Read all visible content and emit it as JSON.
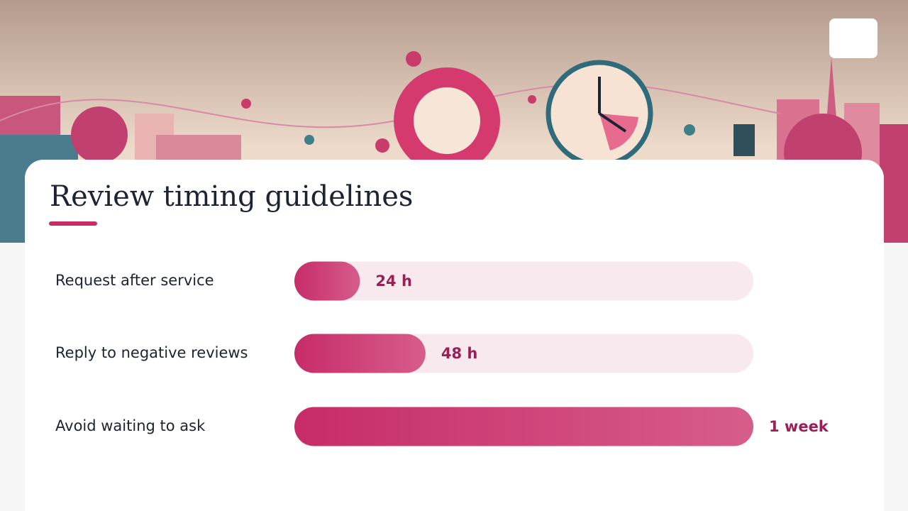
{
  "chart_data": {
    "type": "bar",
    "orientation": "horizontal",
    "title": "Review timing guidelines",
    "categories": [
      "Request after service",
      "Reply to negative reviews",
      "Avoid waiting to ask"
    ],
    "values": [
      24,
      48,
      168
    ],
    "value_labels": [
      "24 h",
      "48 h",
      "1 week"
    ],
    "color": "#c72c68",
    "xlim": [
      0,
      168
    ]
  }
}
